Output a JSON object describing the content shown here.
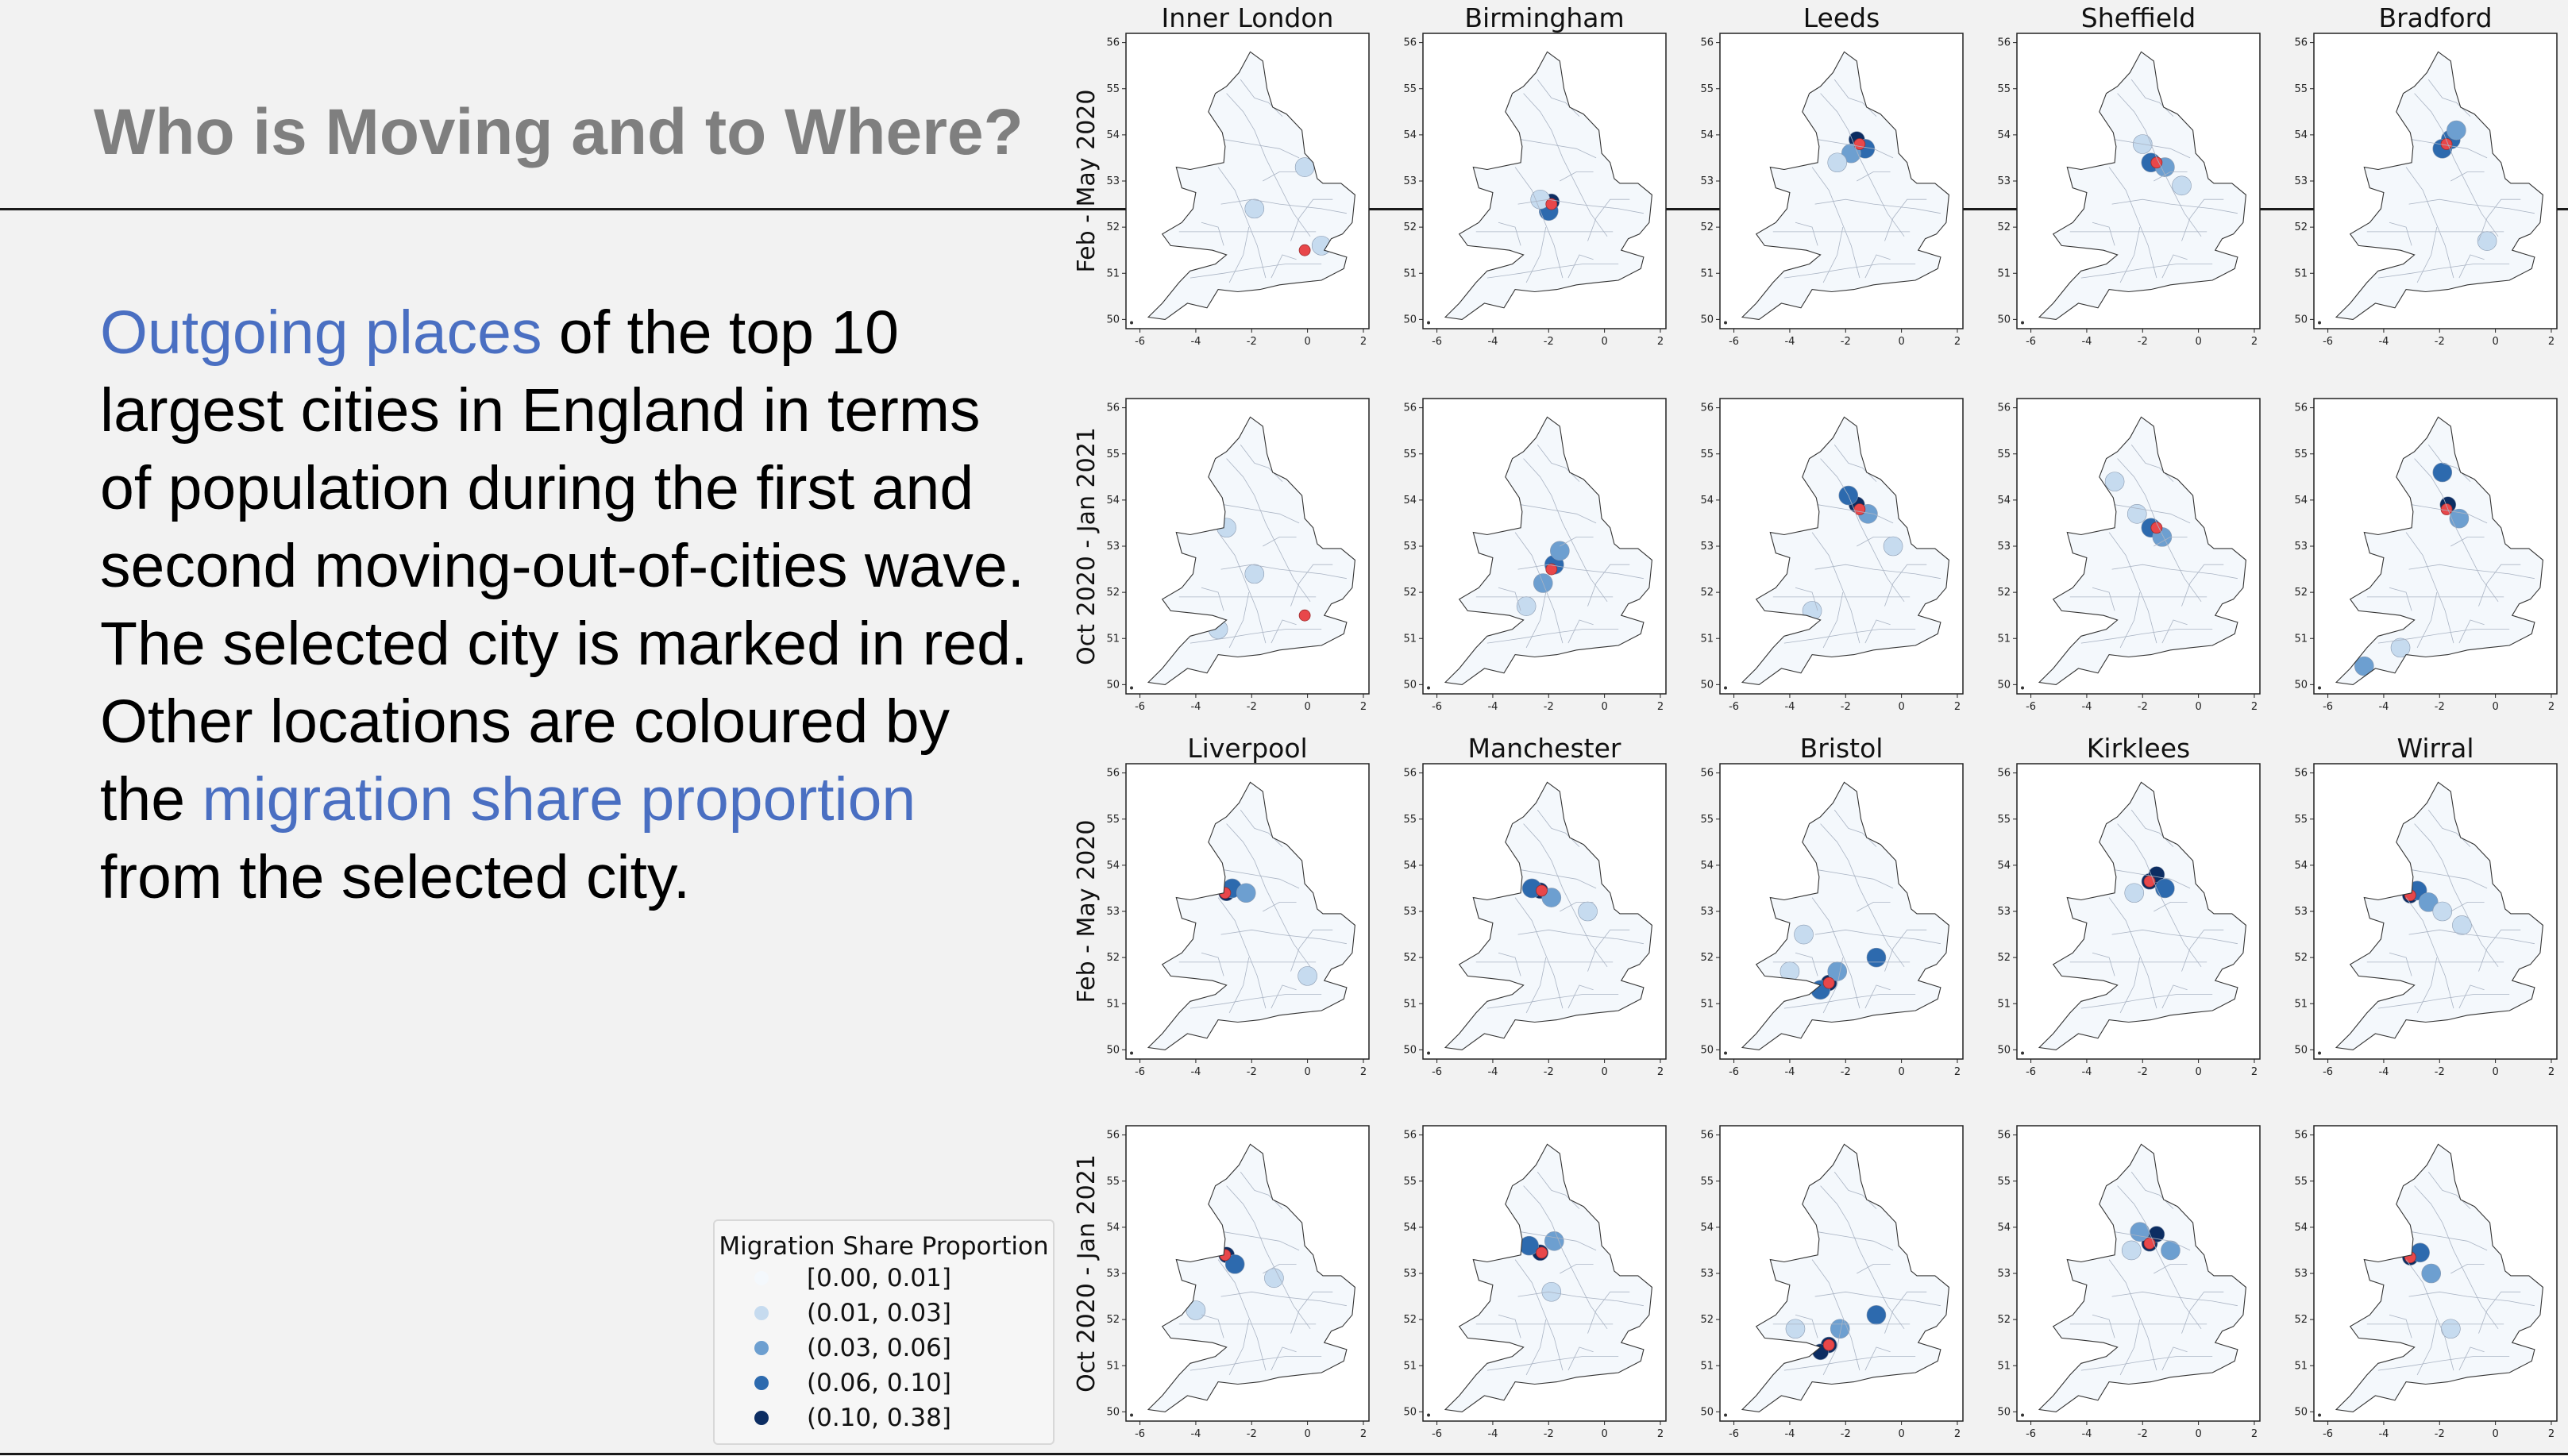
{
  "slide": {
    "title": "Who is Moving and to Where?",
    "body_segments": [
      {
        "text": "Outgoing places",
        "highlight": true
      },
      {
        "text": " of the top 10 largest cities in England in terms of population during the first and second moving-out-of-cities wave. The selected city is marked in red. Other locations are coloured by the ",
        "highlight": false
      },
      {
        "text": "migration share proportion",
        "highlight": true
      },
      {
        "text": " from the selected city.",
        "highlight": false
      }
    ],
    "highlight_color": "#4a6fc2"
  },
  "legend": {
    "title": "Migration Share Proportion",
    "items": [
      {
        "label": "[0.00, 0.01]",
        "color": "#f4f8fc"
      },
      {
        "label": "(0.01, 0.03]",
        "color": "#c6dbef"
      },
      {
        "label": "(0.03, 0.06]",
        "color": "#6d9fd0"
      },
      {
        "label": "(0.06, 0.10]",
        "color": "#2d6aae"
      },
      {
        "label": "(0.10, 0.38]",
        "color": "#0c2d62"
      }
    ]
  },
  "map_grid": {
    "selected_city_color": "#e8474a",
    "axes": {
      "x_ticks": [
        "-6",
        "-4",
        "-2",
        "0",
        "2"
      ],
      "y_ticks": [
        "50",
        "51",
        "52",
        "53",
        "54",
        "55",
        "56"
      ]
    },
    "rows": [
      {
        "period": "Feb - May 2020",
        "cities": [
          "Inner London",
          "Birmingham",
          "Leeds",
          "Sheffield",
          "Bradford"
        ]
      },
      {
        "period": "Oct 2020 - Jan 2021",
        "cities": [
          "",
          "",
          "",
          "",
          ""
        ]
      },
      {
        "period": "Feb - May 2020",
        "cities": [
          "Liverpool",
          "Manchester",
          "Bristol",
          "Kirklees",
          "Wirral"
        ]
      },
      {
        "period": "Oct 2020 - Jan 2021",
        "cities": [
          "",
          "",
          "",
          "",
          ""
        ]
      }
    ],
    "city_positions": {
      "Inner London": [
        -0.1,
        51.5
      ],
      "Birmingham": [
        -1.9,
        52.5
      ],
      "Leeds": [
        -1.5,
        53.8
      ],
      "Sheffield": [
        -1.5,
        53.4
      ],
      "Bradford": [
        -1.75,
        53.8
      ],
      "Liverpool": [
        -2.95,
        53.4
      ],
      "Manchester": [
        -2.25,
        53.45
      ],
      "Bristol": [
        -2.6,
        51.45
      ],
      "Kirklees": [
        -1.75,
        53.65
      ],
      "Wirral": [
        -3.05,
        53.35
      ]
    },
    "highlights": [
      [
        [
          [
            -0.1,
            53.3,
            1
          ],
          [
            -1.9,
            52.4,
            1
          ],
          [
            0.5,
            51.6,
            1
          ]
        ],
        [
          [
            -1.9,
            52.55,
            4
          ],
          [
            -2.0,
            52.35,
            3
          ],
          [
            -2.3,
            52.6,
            1
          ]
        ],
        [
          [
            -1.6,
            53.9,
            4
          ],
          [
            -1.3,
            53.7,
            3
          ],
          [
            -1.8,
            53.6,
            2
          ],
          [
            -2.3,
            53.4,
            1
          ]
        ],
        [
          [
            -1.7,
            53.4,
            3
          ],
          [
            -1.2,
            53.3,
            2
          ],
          [
            -0.6,
            52.9,
            1
          ],
          [
            -2.0,
            53.8,
            1
          ]
        ],
        [
          [
            -1.6,
            53.9,
            3
          ],
          [
            -1.9,
            53.7,
            3
          ],
          [
            -1.4,
            54.1,
            2
          ],
          [
            -0.3,
            51.7,
            1
          ]
        ]
      ],
      [
        [
          [
            -2.9,
            53.4,
            1
          ],
          [
            -3.2,
            51.2,
            1
          ],
          [
            -1.9,
            52.4,
            1
          ]
        ],
        [
          [
            -1.8,
            52.6,
            3
          ],
          [
            -2.2,
            52.2,
            2
          ],
          [
            -1.6,
            52.9,
            2
          ],
          [
            -2.8,
            51.7,
            1
          ]
        ],
        [
          [
            -1.6,
            53.9,
            4
          ],
          [
            -1.9,
            54.1,
            3
          ],
          [
            -1.2,
            53.7,
            2
          ],
          [
            -0.3,
            53.0,
            1
          ],
          [
            -3.2,
            51.6,
            1
          ]
        ],
        [
          [
            -1.7,
            53.4,
            3
          ],
          [
            -1.3,
            53.2,
            2
          ],
          [
            -2.2,
            53.7,
            1
          ],
          [
            -3.0,
            54.4,
            1
          ]
        ],
        [
          [
            -1.7,
            53.9,
            4
          ],
          [
            -1.9,
            54.6,
            3
          ],
          [
            -1.3,
            53.6,
            2
          ],
          [
            -4.7,
            50.4,
            2
          ],
          [
            -3.4,
            50.8,
            1
          ]
        ]
      ],
      [
        [
          [
            -2.9,
            53.4,
            4
          ],
          [
            -2.7,
            53.5,
            3
          ],
          [
            -2.2,
            53.4,
            2
          ],
          [
            0.0,
            51.6,
            1
          ]
        ],
        [
          [
            -2.3,
            53.45,
            4
          ],
          [
            -2.6,
            53.5,
            3
          ],
          [
            -1.9,
            53.3,
            2
          ],
          [
            -0.6,
            53.0,
            1
          ]
        ],
        [
          [
            -2.6,
            51.45,
            4
          ],
          [
            -2.9,
            51.3,
            3
          ],
          [
            -2.3,
            51.7,
            2
          ],
          [
            -0.9,
            52.0,
            3
          ],
          [
            -4.0,
            51.7,
            1
          ],
          [
            -3.5,
            52.5,
            1
          ]
        ],
        [
          [
            -1.75,
            53.65,
            4
          ],
          [
            -1.5,
            53.8,
            4
          ],
          [
            -1.2,
            53.5,
            3
          ],
          [
            -2.3,
            53.4,
            1
          ]
        ],
        [
          [
            -3.05,
            53.35,
            4
          ],
          [
            -2.8,
            53.45,
            3
          ],
          [
            -2.4,
            53.2,
            2
          ],
          [
            -1.9,
            53.0,
            1
          ],
          [
            -1.2,
            52.7,
            1
          ]
        ]
      ],
      [
        [
          [
            -2.9,
            53.4,
            4
          ],
          [
            -2.6,
            53.2,
            3
          ],
          [
            -4.0,
            52.2,
            1
          ],
          [
            -1.2,
            52.9,
            1
          ]
        ],
        [
          [
            -2.3,
            53.45,
            4
          ],
          [
            -1.8,
            53.7,
            2
          ],
          [
            -2.7,
            53.6,
            3
          ],
          [
            -1.9,
            52.6,
            1
          ]
        ],
        [
          [
            -2.6,
            51.45,
            4
          ],
          [
            -2.9,
            51.3,
            4
          ],
          [
            -2.2,
            51.8,
            2
          ],
          [
            -0.9,
            52.1,
            3
          ],
          [
            -3.8,
            51.8,
            1
          ]
        ],
        [
          [
            -1.75,
            53.65,
            4
          ],
          [
            -1.5,
            53.85,
            4
          ],
          [
            -2.1,
            53.9,
            2
          ],
          [
            -1.0,
            53.5,
            2
          ],
          [
            -2.4,
            53.5,
            1
          ]
        ],
        [
          [
            -3.05,
            53.35,
            4
          ],
          [
            -2.7,
            53.45,
            3
          ],
          [
            -2.3,
            53.0,
            2
          ],
          [
            -1.6,
            51.8,
            1
          ]
        ]
      ]
    ]
  }
}
